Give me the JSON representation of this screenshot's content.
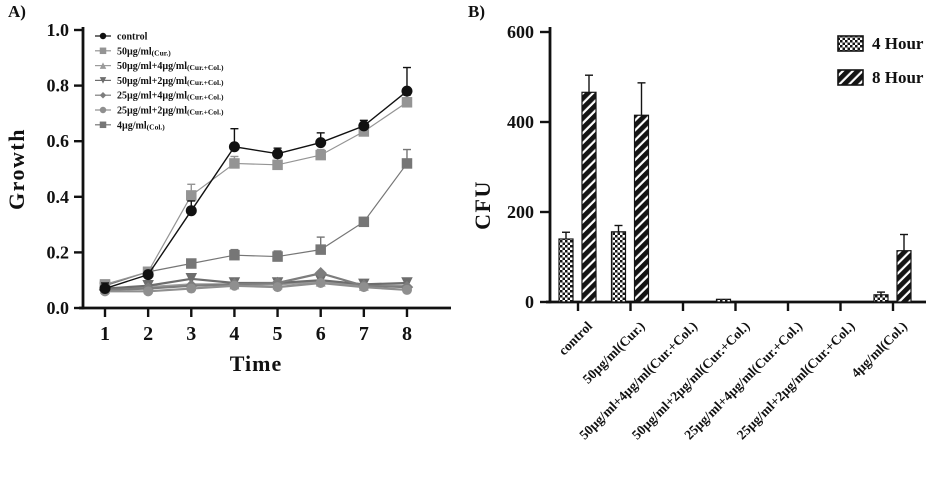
{
  "figure": {
    "panel_a_label": "A)",
    "panel_b_label": "B)"
  },
  "colors": {
    "axis": "#111111",
    "control": "#111111",
    "cur50": "#949494",
    "cur50_col4": "#9b9b9b",
    "cur50_col2": "#6d6d6d",
    "cur25_col4": "#7d7d7d",
    "cur25_col2": "#8f8f8f",
    "col4": "#767676"
  },
  "chart_data": [
    {
      "type": "line",
      "panel": "A",
      "title": "",
      "xlabel": "Time",
      "ylabel": "Growth",
      "x": [
        1,
        2,
        3,
        4,
        5,
        6,
        7,
        8
      ],
      "ylim": [
        0.0,
        1.0
      ],
      "yticks": [
        0.0,
        0.2,
        0.4,
        0.6,
        0.8,
        1.0
      ],
      "grid": false,
      "legend_position": "inside-top-left",
      "series": [
        {
          "name": "control",
          "legend_label": "control",
          "legend_sub": "",
          "marker": "circle",
          "color": "#111111",
          "line_width": 1.4,
          "values": [
            0.07,
            0.12,
            0.35,
            0.58,
            0.555,
            0.595,
            0.655,
            0.78
          ],
          "errors": [
            0.02,
            0.012,
            0.035,
            0.065,
            0.02,
            0.035,
            0.02,
            0.085
          ]
        },
        {
          "name": "50ug-ml-cur",
          "legend_label": "50µg/ml",
          "legend_sub": "(Cur.)",
          "marker": "square",
          "color": "#949494",
          "line_width": 1.2,
          "values": [
            0.085,
            0.13,
            0.405,
            0.52,
            0.515,
            0.55,
            0.635,
            0.74
          ],
          "errors": [
            0.01,
            0.01,
            0.04,
            0.025,
            0.025,
            0.02,
            0.02,
            0.025
          ]
        },
        {
          "name": "50ug-ml-plus-4ug-ml",
          "legend_label": "50µg/ml+4µg/ml",
          "legend_sub": "(Cur.+Col.)",
          "marker": "triangle-up",
          "color": "#9b9b9b",
          "line_width": 2.2,
          "values": [
            0.07,
            0.075,
            0.085,
            0.085,
            0.085,
            0.095,
            0.08,
            0.08
          ],
          "errors": [
            0,
            0,
            0,
            0,
            0,
            0,
            0,
            0
          ]
        },
        {
          "name": "50ug-ml-plus-2ug-ml",
          "legend_label": "50µg/ml+2µg/ml",
          "legend_sub": "(Cur.+Col.)",
          "marker": "triangle-down",
          "color": "#6d6d6d",
          "line_width": 2.2,
          "values": [
            0.07,
            0.08,
            0.105,
            0.09,
            0.09,
            0.1,
            0.085,
            0.09
          ],
          "errors": [
            0,
            0,
            0,
            0,
            0,
            0,
            0,
            0
          ]
        },
        {
          "name": "25ug-ml-plus-4ug-ml",
          "legend_label": "25µg/ml+4µg/ml",
          "legend_sub": "(Cur.+Col.)",
          "marker": "diamond",
          "color": "#7d7d7d",
          "line_width": 2.2,
          "values": [
            0.065,
            0.07,
            0.08,
            0.085,
            0.09,
            0.125,
            0.08,
            0.075
          ],
          "errors": [
            0,
            0,
            0,
            0,
            0,
            0,
            0,
            0
          ]
        },
        {
          "name": "25ug-ml-plus-2ug-ml",
          "legend_label": "25µg/ml+2µg/ml",
          "legend_sub": "(Cur.+Col.)",
          "marker": "circle",
          "color": "#8f8f8f",
          "line_width": 2.2,
          "values": [
            0.06,
            0.06,
            0.07,
            0.08,
            0.075,
            0.09,
            0.075,
            0.065
          ],
          "errors": [
            0,
            0,
            0,
            0,
            0,
            0,
            0,
            0
          ]
        },
        {
          "name": "4ug-ml-col",
          "legend_label": "4µg/ml",
          "legend_sub": "(Col.)",
          "marker": "square",
          "color": "#767676",
          "line_width": 1.2,
          "values": [
            0.08,
            0.13,
            0.16,
            0.19,
            0.185,
            0.21,
            0.31,
            0.52
          ],
          "errors": [
            0.012,
            0.01,
            0.015,
            0.02,
            0.02,
            0.045,
            0.015,
            0.05
          ]
        }
      ]
    },
    {
      "type": "bar",
      "panel": "B",
      "title": "",
      "xlabel": "",
      "ylabel": "CFU",
      "ylim": [
        0,
        600
      ],
      "yticks": [
        0,
        200,
        400,
        600
      ],
      "grid": false,
      "legend_position": "top-right",
      "categories": [
        "control",
        "50µg/ml(Cur.)",
        "50µg/ml+4µg/ml(Cur.+Col.)",
        "50µg/ml+2µg/ml(Cur.+Col.)",
        "25µg/ml+4µg/ml(Cur.+Col.)",
        "25µg/ml+2µg/ml(Cur.+Col.)",
        "4µg/ml(Col.)"
      ],
      "series": [
        {
          "name": "4 Hour",
          "pattern": "checker",
          "values": [
            140,
            156,
            0,
            6,
            0,
            0,
            16
          ],
          "errors": [
            15,
            14,
            0,
            0,
            0,
            0,
            6
          ]
        },
        {
          "name": "8 Hour",
          "pattern": "stripes",
          "values": [
            466,
            415,
            0,
            0,
            0,
            0,
            114
          ],
          "errors": [
            38,
            72,
            0,
            0,
            0,
            0,
            36
          ]
        }
      ]
    }
  ]
}
